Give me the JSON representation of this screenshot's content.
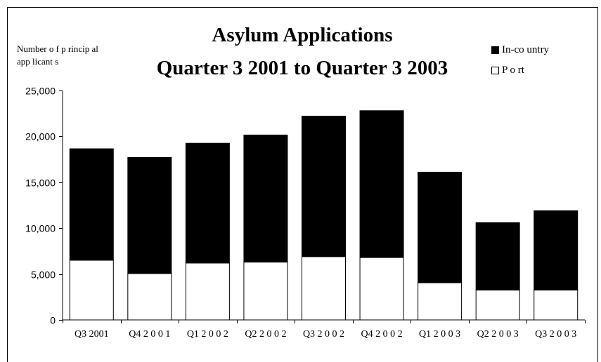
{
  "chart_data": {
    "type": "bar",
    "stacked": true,
    "title": [
      "Asylum Applications",
      "Quarter 3 2001 to Quarter 3 2003"
    ],
    "ylabel": [
      "Number o f p rincip al",
      "app licant s"
    ],
    "categories": [
      "Q3 2001",
      "Q4 2001",
      "Q1 2002",
      "Q2 2002",
      "Q3 2002",
      "Q4 2002",
      "Q1 2003",
      "Q2 2003",
      "Q3 2003"
    ],
    "category_labels": [
      "Q3 2001",
      "Q4 2 0 0 1",
      "Q1 2 0 0 2",
      "Q2 2 0 0 2",
      "Q3 2 0 0 2",
      "Q4 2 0 0 2",
      "Q1 2 0 0 3",
      "Q2 2 0 0 3",
      "Q3 2 0 0 3"
    ],
    "series": [
      {
        "name": "Port",
        "values": [
          6500,
          5050,
          6200,
          6300,
          6900,
          6800,
          4050,
          3250,
          3250
        ],
        "color": "#ffffff"
      },
      {
        "name": "In-country",
        "values": [
          12150,
          12650,
          13050,
          13850,
          15300,
          16000,
          12050,
          7350,
          8650
        ],
        "color": "#000000"
      }
    ],
    "legend_labels": [
      "In-co untry",
      "P o rt"
    ],
    "ylim": [
      0,
      25000
    ],
    "yticks": [
      0,
      5000,
      10000,
      15000,
      20000,
      25000
    ],
    "ytick_labels": [
      "0",
      "5,000",
      "10,000",
      "15,000",
      "20,000",
      "25,000"
    ],
    "grid": false,
    "legend_position": "top-right"
  }
}
